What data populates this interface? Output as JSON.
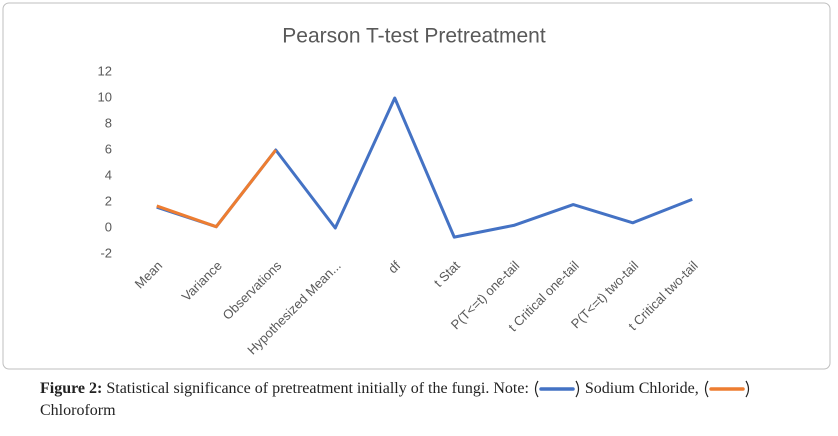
{
  "chart_data": {
    "type": "line",
    "title": "Pearson T-test Pretreatment",
    "categories": [
      "Mean",
      "Variance",
      "Observations",
      "Hypothesized Mean...",
      "df",
      "t Stat",
      "P(T<=t) one-tail",
      "t Critical one-tail",
      "P(T<=t) two-tail",
      "t Critical two-tail"
    ],
    "series": [
      {
        "name": "Sodium Chloride",
        "color": "#4472c4",
        "values": [
          1.6,
          0.1,
          6,
          0,
          10,
          -0.7,
          0.2,
          1.8,
          0.4,
          2.2
        ]
      },
      {
        "name": "Chloroform",
        "color": "#ed7d31",
        "values": [
          1.7,
          0.1,
          6,
          null,
          null,
          null,
          null,
          null,
          null,
          null
        ]
      }
    ],
    "ylim": [
      -2,
      12
    ],
    "yticks": [
      -2,
      0,
      2,
      4,
      6,
      8,
      10,
      12
    ],
    "grid": false
  },
  "caption": {
    "label": "Figure 2:",
    "text": "Statistical significance of pretreatment initially of the fungi. Note:",
    "delimiter": ","
  }
}
